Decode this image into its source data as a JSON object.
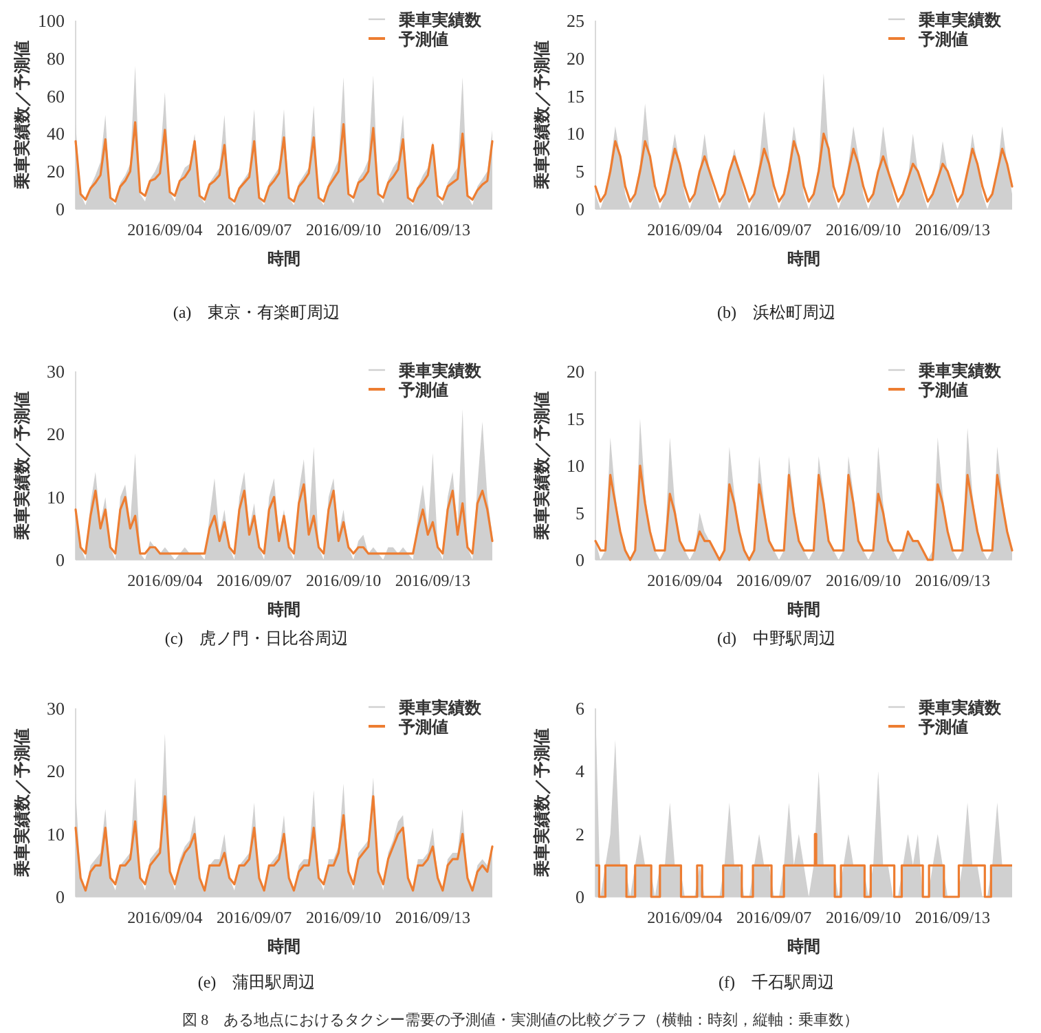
{
  "chart_data": [
    {
      "type": "line",
      "title": "(a)　東京・有楽町周辺",
      "xlabel": "時間",
      "ylabel": "乗車実績数／予測値",
      "legend": "top right",
      "xlim": [
        "2016-09-01T00:00",
        "2016-09-15T00:00"
      ],
      "xticks": [
        {
          "value": "2016-09-04",
          "label": "2016/09/04"
        },
        {
          "value": "2016-09-07",
          "label": "2016/09/07"
        },
        {
          "value": "2016-09-10",
          "label": "2016/09/10"
        },
        {
          "value": "2016-09-13",
          "label": "2016/09/13"
        }
      ],
      "ylim": [
        0,
        100
      ],
      "yticks": [
        0,
        20,
        40,
        60,
        80,
        100
      ],
      "x": [
        "2016-09-01T00:00",
        "2016-09-01T04:00",
        "2016-09-01T08:00",
        "2016-09-01T12:00",
        "2016-09-01T16:00",
        "2016-09-01T20:00",
        "2016-09-02T00:00",
        "2016-09-02T04:00",
        "2016-09-02T08:00",
        "2016-09-02T12:00",
        "2016-09-02T16:00",
        "2016-09-02T20:00",
        "2016-09-03T00:00",
        "2016-09-03T04:00",
        "2016-09-03T08:00",
        "2016-09-03T12:00",
        "2016-09-03T16:00",
        "2016-09-03T20:00",
        "2016-09-04T00:00",
        "2016-09-04T04:00",
        "2016-09-04T08:00",
        "2016-09-04T12:00",
        "2016-09-04T16:00",
        "2016-09-04T20:00",
        "2016-09-05T00:00",
        "2016-09-05T04:00",
        "2016-09-05T08:00",
        "2016-09-05T12:00",
        "2016-09-05T16:00",
        "2016-09-05T20:00",
        "2016-09-06T00:00",
        "2016-09-06T04:00",
        "2016-09-06T08:00",
        "2016-09-06T12:00",
        "2016-09-06T16:00",
        "2016-09-06T20:00",
        "2016-09-07T00:00",
        "2016-09-07T04:00",
        "2016-09-07T08:00",
        "2016-09-07T12:00",
        "2016-09-07T16:00",
        "2016-09-07T20:00",
        "2016-09-08T00:00",
        "2016-09-08T04:00",
        "2016-09-08T08:00",
        "2016-09-08T12:00",
        "2016-09-08T16:00",
        "2016-09-08T20:00",
        "2016-09-09T00:00",
        "2016-09-09T04:00",
        "2016-09-09T08:00",
        "2016-09-09T12:00",
        "2016-09-09T16:00",
        "2016-09-09T20:00",
        "2016-09-10T00:00",
        "2016-09-10T04:00",
        "2016-09-10T08:00",
        "2016-09-10T12:00",
        "2016-09-10T16:00",
        "2016-09-10T20:00",
        "2016-09-11T00:00",
        "2016-09-11T04:00",
        "2016-09-11T08:00",
        "2016-09-11T12:00",
        "2016-09-11T16:00",
        "2016-09-11T20:00",
        "2016-09-12T00:00",
        "2016-09-12T04:00",
        "2016-09-12T08:00",
        "2016-09-12T12:00",
        "2016-09-12T16:00",
        "2016-09-12T20:00",
        "2016-09-13T00:00",
        "2016-09-13T04:00",
        "2016-09-13T08:00",
        "2016-09-13T12:00",
        "2016-09-13T16:00",
        "2016-09-13T20:00",
        "2016-09-14T00:00",
        "2016-09-14T04:00",
        "2016-09-14T08:00",
        "2016-09-14T12:00",
        "2016-09-14T16:00",
        "2016-09-14T20:00",
        "2016-09-15T00:00"
      ],
      "series": [
        {
          "name": "乗車実績数",
          "type": "area",
          "color": "#d0d0d0",
          "values": [
            45,
            8,
            2,
            12,
            18,
            25,
            50,
            6,
            2,
            14,
            18,
            24,
            76,
            8,
            4,
            16,
            20,
            26,
            62,
            9,
            4,
            16,
            22,
            24,
            40,
            7,
            3,
            14,
            18,
            22,
            50,
            6,
            2,
            12,
            16,
            20,
            53,
            6,
            2,
            14,
            18,
            22,
            53,
            6,
            2,
            14,
            18,
            22,
            55,
            6,
            2,
            14,
            20,
            26,
            70,
            8,
            3,
            16,
            20,
            26,
            71,
            8,
            3,
            16,
            22,
            26,
            50,
            6,
            2,
            12,
            18,
            22,
            36,
            6,
            2,
            14,
            18,
            22,
            70,
            7,
            2,
            12,
            16,
            20,
            42
          ]
        },
        {
          "name": "予測値",
          "type": "line",
          "color": "#ed7d31",
          "values": [
            36,
            8,
            5,
            11,
            14,
            18,
            37,
            6,
            4,
            12,
            15,
            20,
            46,
            9,
            7,
            15,
            16,
            19,
            42,
            9,
            7,
            15,
            17,
            21,
            36,
            7,
            5,
            13,
            15,
            18,
            34,
            6,
            4,
            11,
            14,
            17,
            36,
            6,
            4,
            12,
            15,
            19,
            38,
            6,
            4,
            12,
            15,
            19,
            38,
            6,
            4,
            12,
            16,
            20,
            45,
            8,
            6,
            14,
            16,
            20,
            43,
            8,
            6,
            14,
            17,
            21,
            37,
            6,
            4,
            11,
            14,
            18,
            34,
            7,
            5,
            12,
            14,
            16,
            40,
            7,
            5,
            10,
            13,
            15,
            36
          ]
        }
      ]
    },
    {
      "type": "line",
      "title": "(b)　浜松町周辺",
      "xlabel": "時間",
      "ylabel": "乗車実績数／予測値",
      "legend": "top right",
      "xlim": [
        "2016-09-01T00:00",
        "2016-09-15T00:00"
      ],
      "xticks": [
        {
          "value": "2016-09-04",
          "label": "2016/09/04"
        },
        {
          "value": "2016-09-07",
          "label": "2016/09/07"
        },
        {
          "value": "2016-09-10",
          "label": "2016/09/10"
        },
        {
          "value": "2016-09-13",
          "label": "2016/09/13"
        }
      ],
      "ylim": [
        0,
        25
      ],
      "yticks": [
        0,
        5,
        10,
        15,
        20,
        25
      ],
      "x": [
        "2016-09-01T00:00",
        "2016-09-01T04:00",
        "2016-09-01T08:00",
        "2016-09-01T12:00",
        "2016-09-01T16:00",
        "2016-09-01T20:00",
        "2016-09-02T00:00",
        "2016-09-02T04:00",
        "2016-09-02T08:00",
        "2016-09-02T12:00",
        "2016-09-02T16:00",
        "2016-09-02T20:00",
        "2016-09-03T00:00",
        "2016-09-03T04:00",
        "2016-09-03T08:00",
        "2016-09-03T12:00",
        "2016-09-03T16:00",
        "2016-09-03T20:00",
        "2016-09-04T00:00",
        "2016-09-04T04:00",
        "2016-09-04T08:00",
        "2016-09-04T12:00",
        "2016-09-04T16:00",
        "2016-09-04T20:00",
        "2016-09-05T00:00",
        "2016-09-05T04:00",
        "2016-09-05T08:00",
        "2016-09-05T12:00",
        "2016-09-05T16:00",
        "2016-09-05T20:00",
        "2016-09-06T00:00",
        "2016-09-06T04:00",
        "2016-09-06T08:00",
        "2016-09-06T12:00",
        "2016-09-06T16:00",
        "2016-09-06T20:00",
        "2016-09-07T00:00",
        "2016-09-07T04:00",
        "2016-09-07T08:00",
        "2016-09-07T12:00",
        "2016-09-07T16:00",
        "2016-09-07T20:00",
        "2016-09-08T00:00",
        "2016-09-08T04:00",
        "2016-09-08T08:00",
        "2016-09-08T12:00",
        "2016-09-08T16:00",
        "2016-09-08T20:00",
        "2016-09-09T00:00",
        "2016-09-09T04:00",
        "2016-09-09T08:00",
        "2016-09-09T12:00",
        "2016-09-09T16:00",
        "2016-09-09T20:00",
        "2016-09-10T00:00",
        "2016-09-10T04:00",
        "2016-09-10T08:00",
        "2016-09-10T12:00",
        "2016-09-10T16:00",
        "2016-09-10T20:00",
        "2016-09-11T00:00",
        "2016-09-11T04:00",
        "2016-09-11T08:00",
        "2016-09-11T12:00",
        "2016-09-11T16:00",
        "2016-09-11T20:00",
        "2016-09-12T00:00",
        "2016-09-12T04:00",
        "2016-09-12T08:00",
        "2016-09-12T12:00",
        "2016-09-12T16:00",
        "2016-09-12T20:00",
        "2016-09-13T00:00",
        "2016-09-13T04:00",
        "2016-09-13T08:00",
        "2016-09-13T12:00",
        "2016-09-13T16:00",
        "2016-09-13T20:00",
        "2016-09-14T00:00",
        "2016-09-14T04:00",
        "2016-09-14T08:00",
        "2016-09-14T12:00",
        "2016-09-14T16:00",
        "2016-09-14T20:00",
        "2016-09-15T00:00"
      ],
      "series": [
        {
          "name": "乗車実績数",
          "type": "area",
          "color": "#d0d0d0",
          "values": [
            2,
            0,
            2,
            6,
            11,
            7,
            2,
            0,
            2,
            6,
            14,
            7,
            2,
            0,
            2,
            6,
            10,
            6,
            2,
            0,
            2,
            5,
            10,
            5,
            2,
            0,
            2,
            5,
            8,
            5,
            2,
            0,
            2,
            6,
            13,
            7,
            2,
            0,
            2,
            6,
            11,
            7,
            2,
            0,
            2,
            6,
            18,
            8,
            2,
            0,
            2,
            6,
            11,
            7,
            2,
            0,
            2,
            5,
            11,
            6,
            2,
            0,
            2,
            4,
            10,
            5,
            2,
            0,
            2,
            4,
            9,
            5,
            2,
            0,
            2,
            5,
            10,
            6,
            2,
            0,
            2,
            5,
            11,
            6,
            2
          ]
        },
        {
          "name": "予測値",
          "type": "line",
          "color": "#ed7d31",
          "values": [
            3,
            1,
            2,
            5,
            9,
            7,
            3,
            1,
            2,
            5,
            9,
            7,
            3,
            1,
            2,
            5,
            8,
            6,
            3,
            1,
            2,
            5,
            7,
            5,
            3,
            1,
            2,
            5,
            7,
            5,
            3,
            1,
            2,
            5,
            8,
            6,
            3,
            1,
            2,
            5,
            9,
            7,
            3,
            1,
            2,
            5,
            10,
            8,
            3,
            1,
            2,
            5,
            8,
            6,
            3,
            1,
            2,
            5,
            7,
            5,
            3,
            1,
            2,
            4,
            6,
            5,
            3,
            1,
            2,
            4,
            6,
            5,
            3,
            1,
            2,
            5,
            8,
            6,
            3,
            1,
            2,
            5,
            8,
            6,
            3
          ]
        }
      ]
    },
    {
      "type": "line",
      "title": "(c)　虎ノ門・日比谷周辺",
      "xlabel": "時間",
      "ylabel": "乗車実績数／予測値",
      "legend": "top right",
      "xlim": [
        "2016-09-01T00:00",
        "2016-09-15T00:00"
      ],
      "xticks": [
        {
          "value": "2016-09-04",
          "label": "2016/09/04"
        },
        {
          "value": "2016-09-07",
          "label": "2016/09/07"
        },
        {
          "value": "2016-09-10",
          "label": "2016/09/10"
        },
        {
          "value": "2016-09-13",
          "label": "2016/09/13"
        }
      ],
      "ylim": [
        0,
        30
      ],
      "yticks": [
        0,
        10,
        20,
        30
      ],
      "x": [
        "2016-09-01T00:00",
        "2016-09-01T04:00",
        "2016-09-01T08:00",
        "2016-09-01T12:00",
        "2016-09-01T16:00",
        "2016-09-01T20:00",
        "2016-09-02T00:00",
        "2016-09-02T04:00",
        "2016-09-02T08:00",
        "2016-09-02T12:00",
        "2016-09-02T16:00",
        "2016-09-02T20:00",
        "2016-09-03T00:00",
        "2016-09-03T04:00",
        "2016-09-03T08:00",
        "2016-09-03T12:00",
        "2016-09-03T16:00",
        "2016-09-03T20:00",
        "2016-09-04T00:00",
        "2016-09-04T04:00",
        "2016-09-04T08:00",
        "2016-09-04T12:00",
        "2016-09-04T16:00",
        "2016-09-04T20:00",
        "2016-09-05T00:00",
        "2016-09-05T04:00",
        "2016-09-05T08:00",
        "2016-09-05T12:00",
        "2016-09-05T16:00",
        "2016-09-05T20:00",
        "2016-09-06T00:00",
        "2016-09-06T04:00",
        "2016-09-06T08:00",
        "2016-09-06T12:00",
        "2016-09-06T16:00",
        "2016-09-06T20:00",
        "2016-09-07T00:00",
        "2016-09-07T04:00",
        "2016-09-07T08:00",
        "2016-09-07T12:00",
        "2016-09-07T16:00",
        "2016-09-07T20:00",
        "2016-09-08T00:00",
        "2016-09-08T04:00",
        "2016-09-08T08:00",
        "2016-09-08T12:00",
        "2016-09-08T16:00",
        "2016-09-08T20:00",
        "2016-09-09T00:00",
        "2016-09-09T04:00",
        "2016-09-09T08:00",
        "2016-09-09T12:00",
        "2016-09-09T16:00",
        "2016-09-09T20:00",
        "2016-09-10T00:00",
        "2016-09-10T04:00",
        "2016-09-10T08:00",
        "2016-09-10T12:00",
        "2016-09-10T16:00",
        "2016-09-10T20:00",
        "2016-09-11T00:00",
        "2016-09-11T04:00",
        "2016-09-11T08:00",
        "2016-09-11T12:00",
        "2016-09-11T16:00",
        "2016-09-11T20:00",
        "2016-09-12T00:00",
        "2016-09-12T04:00",
        "2016-09-12T08:00",
        "2016-09-12T12:00",
        "2016-09-12T16:00",
        "2016-09-12T20:00",
        "2016-09-13T00:00",
        "2016-09-13T04:00",
        "2016-09-13T08:00",
        "2016-09-13T12:00",
        "2016-09-13T16:00",
        "2016-09-13T20:00",
        "2016-09-14T00:00",
        "2016-09-14T04:00",
        "2016-09-14T08:00",
        "2016-09-14T12:00",
        "2016-09-14T16:00",
        "2016-09-14T20:00",
        "2016-09-15T00:00"
      ],
      "series": [
        {
          "name": "乗車実績数",
          "type": "area",
          "color": "#d0d0d0",
          "values": [
            9,
            2,
            0,
            9,
            14,
            6,
            10,
            2,
            0,
            10,
            12,
            6,
            17,
            1,
            0,
            3,
            2,
            1,
            2,
            1,
            0,
            1,
            2,
            1,
            1,
            1,
            0,
            7,
            13,
            4,
            8,
            2,
            0,
            10,
            14,
            5,
            9,
            2,
            0,
            10,
            13,
            4,
            8,
            2,
            0,
            11,
            16,
            5,
            18,
            2,
            0,
            10,
            13,
            4,
            8,
            2,
            0,
            3,
            4,
            1,
            2,
            1,
            0,
            2,
            2,
            1,
            2,
            1,
            0,
            7,
            12,
            5,
            17,
            2,
            0,
            10,
            14,
            5,
            24,
            2,
            0,
            12,
            22,
            10,
            4
          ]
        },
        {
          "name": "予測値",
          "type": "line",
          "color": "#ed7d31",
          "values": [
            8,
            2,
            1,
            7,
            11,
            5,
            8,
            2,
            1,
            8,
            10,
            5,
            7,
            1,
            1,
            2,
            2,
            1,
            1,
            1,
            1,
            1,
            1,
            1,
            1,
            1,
            1,
            5,
            7,
            3,
            6,
            2,
            1,
            8,
            11,
            4,
            7,
            2,
            1,
            8,
            10,
            3,
            7,
            2,
            1,
            9,
            12,
            4,
            7,
            2,
            1,
            8,
            11,
            3,
            6,
            2,
            1,
            2,
            2,
            1,
            1,
            1,
            1,
            1,
            1,
            1,
            1,
            1,
            1,
            5,
            8,
            4,
            6,
            2,
            1,
            8,
            11,
            4,
            9,
            2,
            1,
            9,
            11,
            8,
            3
          ]
        }
      ]
    },
    {
      "type": "line",
      "title": "(d)　中野駅周辺",
      "xlabel": "時間",
      "ylabel": "乗車実績数／予測値",
      "legend": "top right",
      "xlim": [
        "2016-09-01T00:00",
        "2016-09-15T00:00"
      ],
      "xticks": [
        {
          "value": "2016-09-04",
          "label": "2016/09/04"
        },
        {
          "value": "2016-09-07",
          "label": "2016/09/07"
        },
        {
          "value": "2016-09-10",
          "label": "2016/09/10"
        },
        {
          "value": "2016-09-13",
          "label": "2016/09/13"
        }
      ],
      "ylim": [
        0,
        20
      ],
      "yticks": [
        0,
        5,
        10,
        15,
        20
      ],
      "x": [
        "2016-09-01T00:00",
        "2016-09-01T04:00",
        "2016-09-01T08:00",
        "2016-09-01T12:00",
        "2016-09-01T16:00",
        "2016-09-01T20:00",
        "2016-09-02T00:00",
        "2016-09-02T04:00",
        "2016-09-02T08:00",
        "2016-09-02T12:00",
        "2016-09-02T16:00",
        "2016-09-02T20:00",
        "2016-09-03T00:00",
        "2016-09-03T04:00",
        "2016-09-03T08:00",
        "2016-09-03T12:00",
        "2016-09-03T16:00",
        "2016-09-03T20:00",
        "2016-09-04T00:00",
        "2016-09-04T04:00",
        "2016-09-04T08:00",
        "2016-09-04T12:00",
        "2016-09-04T16:00",
        "2016-09-04T20:00",
        "2016-09-05T00:00",
        "2016-09-05T04:00",
        "2016-09-05T08:00",
        "2016-09-05T12:00",
        "2016-09-05T16:00",
        "2016-09-05T20:00",
        "2016-09-06T00:00",
        "2016-09-06T04:00",
        "2016-09-06T08:00",
        "2016-09-06T12:00",
        "2016-09-06T16:00",
        "2016-09-06T20:00",
        "2016-09-07T00:00",
        "2016-09-07T04:00",
        "2016-09-07T08:00",
        "2016-09-07T12:00",
        "2016-09-07T16:00",
        "2016-09-07T20:00",
        "2016-09-08T00:00",
        "2016-09-08T04:00",
        "2016-09-08T08:00",
        "2016-09-08T12:00",
        "2016-09-08T16:00",
        "2016-09-08T20:00",
        "2016-09-09T00:00",
        "2016-09-09T04:00",
        "2016-09-09T08:00",
        "2016-09-09T12:00",
        "2016-09-09T16:00",
        "2016-09-09T20:00",
        "2016-09-10T00:00",
        "2016-09-10T04:00",
        "2016-09-10T08:00",
        "2016-09-10T12:00",
        "2016-09-10T16:00",
        "2016-09-10T20:00",
        "2016-09-11T00:00",
        "2016-09-11T04:00",
        "2016-09-11T08:00",
        "2016-09-11T12:00",
        "2016-09-11T16:00",
        "2016-09-11T20:00",
        "2016-09-12T00:00",
        "2016-09-12T04:00",
        "2016-09-12T08:00",
        "2016-09-12T12:00",
        "2016-09-12T16:00",
        "2016-09-12T20:00",
        "2016-09-13T00:00",
        "2016-09-13T04:00",
        "2016-09-13T08:00",
        "2016-09-13T12:00",
        "2016-09-13T16:00",
        "2016-09-13T20:00",
        "2016-09-14T00:00",
        "2016-09-14T04:00",
        "2016-09-14T08:00",
        "2016-09-14T12:00",
        "2016-09-14T16:00",
        "2016-09-14T20:00",
        "2016-09-15T00:00"
      ],
      "series": [
        {
          "name": "乗車実績数",
          "type": "area",
          "color": "#d0d0d0",
          "values": [
            2,
            0,
            1,
            13,
            7,
            3,
            1,
            0,
            1,
            15,
            7,
            3,
            1,
            0,
            1,
            13,
            6,
            2,
            1,
            0,
            1,
            5,
            3,
            2,
            1,
            0,
            1,
            12,
            7,
            3,
            1,
            0,
            1,
            11,
            6,
            2,
            1,
            0,
            1,
            11,
            6,
            2,
            1,
            0,
            1,
            11,
            7,
            2,
            1,
            0,
            1,
            11,
            7,
            2,
            1,
            0,
            1,
            12,
            6,
            2,
            1,
            0,
            1,
            3,
            2,
            2,
            1,
            0,
            1,
            13,
            7,
            3,
            1,
            0,
            1,
            14,
            7,
            3,
            1,
            0,
            1,
            12,
            7,
            3,
            1
          ]
        },
        {
          "name": "予測値",
          "type": "line",
          "color": "#ed7d31",
          "values": [
            2,
            1,
            1,
            9,
            6,
            3,
            1,
            0,
            1,
            10,
            6,
            3,
            1,
            1,
            1,
            7,
            5,
            2,
            1,
            1,
            1,
            3,
            2,
            2,
            1,
            0,
            1,
            8,
            6,
            3,
            1,
            0,
            1,
            8,
            5,
            2,
            1,
            1,
            1,
            9,
            5,
            2,
            1,
            1,
            1,
            9,
            6,
            2,
            1,
            1,
            1,
            9,
            6,
            2,
            1,
            1,
            1,
            7,
            5,
            2,
            1,
            1,
            1,
            3,
            2,
            2,
            1,
            0,
            0,
            8,
            6,
            3,
            1,
            1,
            1,
            9,
            6,
            3,
            1,
            1,
            1,
            9,
            6,
            3,
            1
          ]
        }
      ]
    },
    {
      "type": "line",
      "title": "(e)　蒲田駅周辺",
      "xlabel": "時間",
      "ylabel": "乗車実績数／予測値",
      "legend": "top right",
      "xlim": [
        "2016-09-01T00:00",
        "2016-09-15T00:00"
      ],
      "xticks": [
        {
          "value": "2016-09-04",
          "label": "2016/09/04"
        },
        {
          "value": "2016-09-07",
          "label": "2016/09/07"
        },
        {
          "value": "2016-09-10",
          "label": "2016/09/10"
        },
        {
          "value": "2016-09-13",
          "label": "2016/09/13"
        }
      ],
      "ylim": [
        0,
        30
      ],
      "yticks": [
        0,
        10,
        20,
        30
      ],
      "x": [
        "2016-09-01T00:00",
        "2016-09-01T04:00",
        "2016-09-01T08:00",
        "2016-09-01T12:00",
        "2016-09-01T16:00",
        "2016-09-01T20:00",
        "2016-09-02T00:00",
        "2016-09-02T04:00",
        "2016-09-02T08:00",
        "2016-09-02T12:00",
        "2016-09-02T16:00",
        "2016-09-02T20:00",
        "2016-09-03T00:00",
        "2016-09-03T04:00",
        "2016-09-03T08:00",
        "2016-09-03T12:00",
        "2016-09-03T16:00",
        "2016-09-03T20:00",
        "2016-09-04T00:00",
        "2016-09-04T04:00",
        "2016-09-04T08:00",
        "2016-09-04T12:00",
        "2016-09-04T16:00",
        "2016-09-04T20:00",
        "2016-09-05T00:00",
        "2016-09-05T04:00",
        "2016-09-05T08:00",
        "2016-09-05T12:00",
        "2016-09-05T16:00",
        "2016-09-05T20:00",
        "2016-09-06T00:00",
        "2016-09-06T04:00",
        "2016-09-06T08:00",
        "2016-09-06T12:00",
        "2016-09-06T16:00",
        "2016-09-06T20:00",
        "2016-09-07T00:00",
        "2016-09-07T04:00",
        "2016-09-07T08:00",
        "2016-09-07T12:00",
        "2016-09-07T16:00",
        "2016-09-07T20:00",
        "2016-09-08T00:00",
        "2016-09-08T04:00",
        "2016-09-08T08:00",
        "2016-09-08T12:00",
        "2016-09-08T16:00",
        "2016-09-08T20:00",
        "2016-09-09T00:00",
        "2016-09-09T04:00",
        "2016-09-09T08:00",
        "2016-09-09T12:00",
        "2016-09-09T16:00",
        "2016-09-09T20:00",
        "2016-09-10T00:00",
        "2016-09-10T04:00",
        "2016-09-10T08:00",
        "2016-09-10T12:00",
        "2016-09-10T16:00",
        "2016-09-10T20:00",
        "2016-09-11T00:00",
        "2016-09-11T04:00",
        "2016-09-11T08:00",
        "2016-09-11T12:00",
        "2016-09-11T16:00",
        "2016-09-11T20:00",
        "2016-09-12T00:00",
        "2016-09-12T04:00",
        "2016-09-12T08:00",
        "2016-09-12T12:00",
        "2016-09-12T16:00",
        "2016-09-12T20:00",
        "2016-09-13T00:00",
        "2016-09-13T04:00",
        "2016-09-13T08:00",
        "2016-09-13T12:00",
        "2016-09-13T16:00",
        "2016-09-13T20:00",
        "2016-09-14T00:00",
        "2016-09-14T04:00",
        "2016-09-14T08:00",
        "2016-09-14T12:00",
        "2016-09-14T16:00",
        "2016-09-14T20:00",
        "2016-09-15T00:00"
      ],
      "series": [
        {
          "name": "乗車実績数",
          "type": "area",
          "color": "#d0d0d0",
          "values": [
            17,
            3,
            1,
            5,
            6,
            7,
            14,
            3,
            1,
            5,
            6,
            7,
            19,
            3,
            1,
            6,
            7,
            8,
            26,
            4,
            1,
            6,
            8,
            9,
            13,
            3,
            1,
            5,
            6,
            6,
            10,
            3,
            1,
            5,
            6,
            7,
            15,
            3,
            1,
            5,
            6,
            7,
            13,
            3,
            1,
            5,
            6,
            6,
            17,
            3,
            1,
            6,
            6,
            8,
            18,
            4,
            1,
            7,
            8,
            9,
            19,
            4,
            1,
            7,
            9,
            12,
            13,
            3,
            1,
            6,
            6,
            7,
            11,
            3,
            1,
            6,
            7,
            7,
            14,
            3,
            1,
            5,
            6,
            5,
            8
          ]
        },
        {
          "name": "予測値",
          "type": "line",
          "color": "#ed7d31",
          "values": [
            11,
            3,
            1,
            4,
            5,
            5,
            11,
            3,
            2,
            5,
            5,
            6,
            12,
            3,
            2,
            5,
            6,
            7,
            16,
            4,
            2,
            5,
            7,
            8,
            10,
            3,
            1,
            5,
            5,
            5,
            7,
            3,
            2,
            5,
            5,
            6,
            11,
            3,
            1,
            5,
            5,
            6,
            10,
            3,
            1,
            4,
            5,
            5,
            11,
            3,
            2,
            5,
            5,
            7,
            13,
            4,
            2,
            6,
            7,
            8,
            16,
            4,
            2,
            6,
            8,
            10,
            11,
            3,
            1,
            5,
            5,
            6,
            8,
            3,
            1,
            5,
            6,
            6,
            10,
            3,
            1,
            4,
            5,
            4,
            8
          ]
        }
      ]
    },
    {
      "type": "line",
      "title": "(f)　千石駅周辺",
      "xlabel": "時間",
      "ylabel": "乗車実績数／予測値",
      "legend": "top right",
      "annotations": [
        "図 8　ある地点におけるタクシー需要の予測値・実測値の比較グラフ（横軸：時刻，縦軸：乗車数）"
      ],
      "xlim": [
        "2016-09-01T00:00",
        "2016-09-15T00:00"
      ],
      "xticks": [
        {
          "value": "2016-09-04",
          "label": "2016/09/04"
        },
        {
          "value": "2016-09-07",
          "label": "2016/09/07"
        },
        {
          "value": "2016-09-10",
          "label": "2016/09/10"
        },
        {
          "value": "2016-09-13",
          "label": "2016/09/13"
        }
      ],
      "ylim": [
        0,
        6
      ],
      "yticks": [
        0,
        2,
        4,
        6
      ],
      "x": [
        "2016-09-01T00:00",
        "2016-09-01T04:00",
        "2016-09-01T08:00",
        "2016-09-01T12:00",
        "2016-09-01T16:00",
        "2016-09-01T20:00",
        "2016-09-02T00:00",
        "2016-09-02T04:00",
        "2016-09-02T08:00",
        "2016-09-02T12:00",
        "2016-09-02T16:00",
        "2016-09-02T20:00",
        "2016-09-03T00:00",
        "2016-09-03T04:00",
        "2016-09-03T08:00",
        "2016-09-03T12:00",
        "2016-09-03T16:00",
        "2016-09-03T20:00",
        "2016-09-04T00:00",
        "2016-09-04T04:00",
        "2016-09-04T08:00",
        "2016-09-04T12:00",
        "2016-09-04T16:00",
        "2016-09-04T20:00",
        "2016-09-05T00:00",
        "2016-09-05T04:00",
        "2016-09-05T08:00",
        "2016-09-05T12:00",
        "2016-09-05T16:00",
        "2016-09-05T20:00",
        "2016-09-06T00:00",
        "2016-09-06T04:00",
        "2016-09-06T08:00",
        "2016-09-06T12:00",
        "2016-09-06T16:00",
        "2016-09-06T20:00",
        "2016-09-07T00:00",
        "2016-09-07T04:00",
        "2016-09-07T08:00",
        "2016-09-07T12:00",
        "2016-09-07T16:00",
        "2016-09-07T20:00",
        "2016-09-08T00:00",
        "2016-09-08T04:00",
        "2016-09-08T08:00",
        "2016-09-08T12:00",
        "2016-09-08T16:00",
        "2016-09-08T20:00",
        "2016-09-09T00:00",
        "2016-09-09T04:00",
        "2016-09-09T08:00",
        "2016-09-09T12:00",
        "2016-09-09T16:00",
        "2016-09-09T20:00",
        "2016-09-10T00:00",
        "2016-09-10T04:00",
        "2016-09-10T08:00",
        "2016-09-10T12:00",
        "2016-09-10T16:00",
        "2016-09-10T20:00",
        "2016-09-11T00:00",
        "2016-09-11T04:00",
        "2016-09-11T08:00",
        "2016-09-11T12:00",
        "2016-09-11T16:00",
        "2016-09-11T20:00",
        "2016-09-12T00:00",
        "2016-09-12T04:00",
        "2016-09-12T08:00",
        "2016-09-12T12:00",
        "2016-09-12T16:00",
        "2016-09-12T20:00",
        "2016-09-13T00:00",
        "2016-09-13T04:00",
        "2016-09-13T08:00",
        "2016-09-13T12:00",
        "2016-09-13T16:00",
        "2016-09-13T20:00",
        "2016-09-14T00:00",
        "2016-09-14T04:00",
        "2016-09-14T08:00",
        "2016-09-14T12:00",
        "2016-09-14T16:00",
        "2016-09-14T20:00",
        "2016-09-15T00:00"
      ],
      "series": [
        {
          "name": "乗車実績数",
          "type": "area",
          "color": "#d0d0d0",
          "values": [
            6,
            0,
            1,
            2,
            5,
            1,
            1,
            0,
            1,
            2,
            1,
            1,
            0,
            1,
            1,
            3,
            1,
            1,
            0,
            0,
            0,
            1,
            0,
            0,
            0,
            0,
            1,
            3,
            1,
            1,
            0,
            0,
            1,
            2,
            1,
            1,
            0,
            0,
            1,
            3,
            1,
            2,
            1,
            0,
            1,
            4,
            1,
            1,
            1,
            0,
            1,
            2,
            1,
            1,
            1,
            0,
            1,
            4,
            1,
            1,
            0,
            0,
            1,
            2,
            1,
            2,
            0,
            0,
            1,
            2,
            1,
            0,
            0,
            0,
            1,
            3,
            1,
            1,
            0,
            0,
            1,
            3,
            1,
            1,
            1
          ]
        },
        {
          "name": "予測値",
          "type": "step",
          "color": "#ed7d31",
          "x": [
            "2016-09-01T00:00",
            "2016-09-01T03:00",
            "2016-09-01T08:00",
            "2016-09-02T01:00",
            "2016-09-02T08:00",
            "2016-09-02T21:00",
            "2016-09-03T04:00",
            "2016-09-03T21:00",
            "2016-09-04T10:00",
            "2016-09-04T14:00",
            "2016-09-05T07:00",
            "2016-09-05T22:00",
            "2016-09-06T07:00",
            "2016-09-06T22:00",
            "2016-09-07T08:00",
            "2016-09-08T09:00",
            "2016-09-08T10:00",
            "2016-09-09T01:00",
            "2016-09-09T06:00",
            "2016-09-10T01:00",
            "2016-09-10T06:00",
            "2016-09-11T01:00",
            "2016-09-11T07:00",
            "2016-09-12T00:00",
            "2016-09-12T05:00",
            "2016-09-12T17:00",
            "2016-09-13T05:00",
            "2016-09-14T02:00",
            "2016-09-14T07:00",
            "2016-09-15T00:00"
          ],
          "values": [
            1,
            0,
            1,
            0,
            1,
            0,
            1,
            0,
            1,
            0,
            1,
            0,
            1,
            0,
            1,
            2,
            1,
            0,
            1,
            0,
            1,
            0,
            1,
            0,
            1,
            0,
            1,
            0,
            1,
            1
          ]
        }
      ]
    }
  ]
}
